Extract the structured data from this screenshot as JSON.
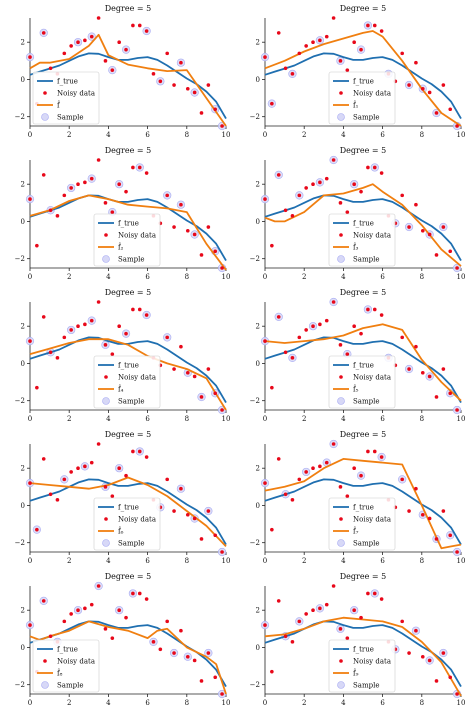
{
  "colors": {
    "true": "#1f6fb0",
    "fit": "#f07f10",
    "noisy": "#e8081a",
    "sample_fill": "#d7d8f7",
    "sample_edge": "#a7aaf2"
  },
  "noisy_x": [
    0.0,
    0.35,
    0.7,
    1.05,
    1.4,
    1.75,
    2.1,
    2.45,
    2.8,
    3.15,
    3.5,
    3.85,
    4.2,
    4.55,
    4.9,
    5.25,
    5.6,
    5.95,
    6.3,
    6.65,
    7.0,
    7.35,
    7.7,
    8.05,
    8.4,
    8.75,
    9.1,
    9.45,
    9.8
  ],
  "noisy_y": [
    1.2,
    -1.3,
    2.5,
    0.6,
    0.3,
    1.4,
    1.8,
    2.0,
    2.1,
    2.3,
    3.3,
    1.0,
    0.5,
    2.0,
    1.6,
    2.9,
    2.9,
    2.6,
    0.3,
    -0.1,
    1.4,
    -0.3,
    0.9,
    -0.5,
    -0.7,
    -1.8,
    -0.3,
    -1.6,
    -2.5
  ],
  "true_x": [
    0,
    0.5,
    1,
    1.5,
    2,
    2.5,
    3,
    3.5,
    4,
    4.5,
    5,
    5.5,
    6,
    6.5,
    7,
    7.5,
    8,
    8.5,
    9,
    9.5,
    10
  ],
  "true_y": [
    0.25,
    0.42,
    0.58,
    0.75,
    1.0,
    1.25,
    1.4,
    1.38,
    1.2,
    1.05,
    1.05,
    1.15,
    1.2,
    1.05,
    0.75,
    0.4,
    0.05,
    -0.25,
    -0.65,
    -1.2,
    -2.1
  ],
  "chart_data": [
    {
      "type": "line",
      "title": "Degree = 5",
      "xlim": [
        0,
        10
      ],
      "ylim": [
        -2.5,
        3.3
      ],
      "xticks": [
        "0",
        "2",
        "4",
        "6",
        "8",
        "10"
      ],
      "yticks": [
        "−2",
        "0",
        "2"
      ],
      "legend": [
        "f_true",
        "Noisy data",
        "f̂",
        "Sample"
      ],
      "legend_placement": "lower-left",
      "sample_idx": [
        0,
        2,
        7,
        9,
        12,
        14,
        17,
        19,
        22,
        24,
        27,
        28
      ],
      "fit_x": [
        0,
        0.5,
        1,
        2,
        3,
        3.5,
        4,
        5,
        6,
        7,
        8,
        9,
        10
      ],
      "fit_y": [
        0.6,
        0.9,
        0.9,
        1.1,
        1.8,
        2.4,
        1.3,
        0.8,
        0.6,
        0.45,
        0.5,
        -1.0,
        -2.5
      ]
    },
    {
      "type": "line",
      "title": "Degree = 5",
      "xlim": [
        0,
        10
      ],
      "ylim": [
        -2.5,
        3.3
      ],
      "xticks": [
        "0",
        "2",
        "4",
        "6",
        "8",
        "10"
      ],
      "yticks": [
        "−2",
        "0",
        "2"
      ],
      "legend": [
        "f_true",
        "Noisy data",
        "f̂₁",
        "Sample"
      ],
      "legend_placement": "lower-center",
      "sample_idx": [
        0,
        1,
        4,
        8,
        11,
        14,
        15,
        18,
        21,
        23,
        25,
        28
      ],
      "fit_x": [
        0,
        1,
        2,
        3,
        4,
        5,
        5.5,
        6,
        7,
        8,
        9,
        10
      ],
      "fit_y": [
        0.6,
        1.0,
        1.5,
        1.9,
        2.2,
        2.5,
        2.6,
        2.3,
        1.0,
        -0.5,
        -1.8,
        -2.5
      ]
    },
    {
      "type": "line",
      "title": "Degree = 5",
      "xlim": [
        0,
        10
      ],
      "ylim": [
        -2.5,
        3.3
      ],
      "xticks": [
        "0",
        "2",
        "4",
        "6",
        "8",
        "10"
      ],
      "yticks": [
        "−2",
        "0",
        "2"
      ],
      "legend": [
        "f_true",
        "Noisy data",
        "f̂₂",
        "Sample"
      ],
      "legend_placement": "lower-center",
      "sample_idx": [
        0,
        3,
        6,
        9,
        12,
        13,
        16,
        20,
        22,
        24,
        27,
        28
      ],
      "fit_x": [
        0,
        1,
        2,
        3,
        4,
        5,
        6,
        7,
        8,
        9,
        10
      ],
      "fit_y": [
        0.3,
        0.6,
        1.1,
        1.4,
        1.2,
        0.9,
        0.8,
        0.7,
        0.5,
        -1.2,
        -2.6
      ]
    },
    {
      "type": "line",
      "title": "Degree = 5",
      "xlim": [
        0,
        10
      ],
      "ylim": [
        -2.5,
        3.3
      ],
      "xticks": [
        "0",
        "2",
        "4",
        "6",
        "8",
        "10"
      ],
      "yticks": [
        "−2",
        "0",
        "2"
      ],
      "legend": [
        "f_true",
        "Noisy data",
        "f̂₃",
        "Sample"
      ],
      "legend_placement": "lower-center",
      "sample_idx": [
        0,
        2,
        5,
        8,
        10,
        13,
        16,
        19,
        21,
        24,
        26,
        28
      ],
      "fit_x": [
        0,
        0.5,
        1,
        2,
        3,
        4,
        5,
        5.5,
        6,
        7,
        8,
        9,
        10
      ],
      "fit_y": [
        0.2,
        0.0,
        0.0,
        0.5,
        1.4,
        1.5,
        1.8,
        2.0,
        1.6,
        0.9,
        -0.2,
        -1.5,
        -2.4
      ]
    },
    {
      "type": "line",
      "title": "Degree = 5",
      "xlim": [
        0,
        10
      ],
      "ylim": [
        -2.5,
        3.3
      ],
      "xticks": [
        "0",
        "2",
        "4",
        "6",
        "8",
        "10"
      ],
      "yticks": [
        "−2",
        "0",
        "2"
      ],
      "legend": [
        "f_true",
        "Noisy data",
        "f̂₄",
        "Sample"
      ],
      "legend_placement": "lower-center",
      "sample_idx": [
        0,
        3,
        6,
        9,
        11,
        14,
        17,
        20,
        23,
        25,
        27,
        28
      ],
      "fit_x": [
        0,
        1,
        2,
        3,
        4,
        5,
        6,
        7,
        8,
        9,
        10
      ],
      "fit_y": [
        0.5,
        0.8,
        1.1,
        1.3,
        1.3,
        1.0,
        0.4,
        0.0,
        -0.3,
        -0.8,
        -2.5
      ]
    },
    {
      "type": "line",
      "title": "Degree = 5",
      "xlim": [
        0,
        10
      ],
      "ylim": [
        -2.5,
        3.3
      ],
      "xticks": [
        "0",
        "2",
        "4",
        "6",
        "8",
        "10"
      ],
      "yticks": [
        "−2",
        "0",
        "2"
      ],
      "legend": [
        "f_true",
        "Noisy data",
        "f̂₅",
        "Sample"
      ],
      "legend_placement": "lower-center",
      "sample_idx": [
        0,
        2,
        4,
        7,
        10,
        12,
        15,
        18,
        21,
        24,
        27,
        28
      ],
      "fit_x": [
        0,
        1,
        2,
        3,
        4,
        5,
        6,
        7,
        8,
        9,
        10
      ],
      "fit_y": [
        1.2,
        1.1,
        1.2,
        1.3,
        1.5,
        1.9,
        2.1,
        1.8,
        0.2,
        -1.0,
        -2.0
      ]
    },
    {
      "type": "line",
      "title": "Degree = 5",
      "xlim": [
        0,
        10
      ],
      "ylim": [
        -2.5,
        3.3
      ],
      "xticks": [
        "0",
        "2",
        "4",
        "6",
        "8",
        "10"
      ],
      "yticks": [
        "−2",
        "0",
        "2"
      ],
      "legend": [
        "f_true",
        "Noisy data",
        "f̂₆",
        "Sample"
      ],
      "legend_placement": "lower-center",
      "sample_idx": [
        0,
        1,
        5,
        8,
        11,
        13,
        16,
        19,
        22,
        24,
        26,
        28
      ],
      "fit_x": [
        0,
        1,
        2,
        3,
        4,
        5,
        6,
        7,
        8,
        9,
        10
      ],
      "fit_y": [
        1.2,
        1.1,
        1.0,
        0.9,
        1.1,
        1.5,
        1.1,
        0.5,
        -0.3,
        -1.1,
        -2.2
      ]
    },
    {
      "type": "line",
      "title": "Degree = 5",
      "xlim": [
        0,
        10
      ],
      "ylim": [
        -2.5,
        3.3
      ],
      "xticks": [
        "0",
        "2",
        "4",
        "6",
        "8",
        "10"
      ],
      "yticks": [
        "−2",
        "0",
        "2"
      ],
      "legend": [
        "f_true",
        "Noisy data",
        "f̂₇",
        "Sample"
      ],
      "legend_placement": "lower-center",
      "sample_idx": [
        0,
        3,
        6,
        9,
        10,
        14,
        17,
        20,
        23,
        25,
        27,
        28
      ],
      "fit_x": [
        0,
        1,
        2,
        3,
        4,
        5,
        6,
        7,
        8,
        9,
        9.5,
        10
      ],
      "fit_y": [
        0.8,
        1.0,
        1.3,
        2.0,
        2.5,
        2.4,
        2.3,
        2.2,
        0.0,
        -2.3,
        -2.2,
        -2.1
      ]
    },
    {
      "type": "line",
      "title": "Degree = 5",
      "xlim": [
        0,
        10
      ],
      "ylim": [
        -2.5,
        3.3
      ],
      "xticks": [
        "0",
        "2",
        "4",
        "6",
        "8",
        "10"
      ],
      "yticks": [
        "−2",
        "0",
        "2"
      ],
      "legend": [
        "f_true",
        "Noisy data",
        "f̂₈",
        "Sample"
      ],
      "legend_placement": "lower-left",
      "sample_idx": [
        0,
        2,
        4,
        7,
        10,
        13,
        15,
        18,
        21,
        23,
        26,
        28
      ],
      "fit_x": [
        0,
        0.5,
        1,
        2,
        3,
        4,
        5,
        6,
        6.5,
        7,
        8,
        9,
        9.5,
        10
      ],
      "fit_y": [
        0.6,
        0.4,
        0.6,
        0.9,
        1.4,
        1.1,
        0.9,
        0.5,
        0.9,
        1.0,
        0.0,
        -0.5,
        -0.9,
        -2.5
      ]
    },
    {
      "type": "line",
      "title": "Degree = 5",
      "xlim": [
        0,
        10
      ],
      "ylim": [
        -2.5,
        3.3
      ],
      "xticks": [
        "0",
        "2",
        "4",
        "6",
        "8",
        "10"
      ],
      "yticks": [
        "−2",
        "0",
        "2"
      ],
      "legend": [
        "f_true",
        "Noisy data",
        "f̂₉",
        "Sample"
      ],
      "legend_placement": "lower-center",
      "sample_idx": [
        0,
        3,
        5,
        8,
        11,
        13,
        16,
        19,
        22,
        24,
        26,
        28
      ],
      "fit_x": [
        0,
        1,
        2,
        3,
        4,
        5,
        6,
        7,
        8,
        9,
        10
      ],
      "fit_y": [
        0.6,
        0.7,
        1.0,
        1.4,
        1.6,
        1.5,
        1.4,
        1.1,
        0.3,
        -0.8,
        -2.6
      ]
    }
  ]
}
